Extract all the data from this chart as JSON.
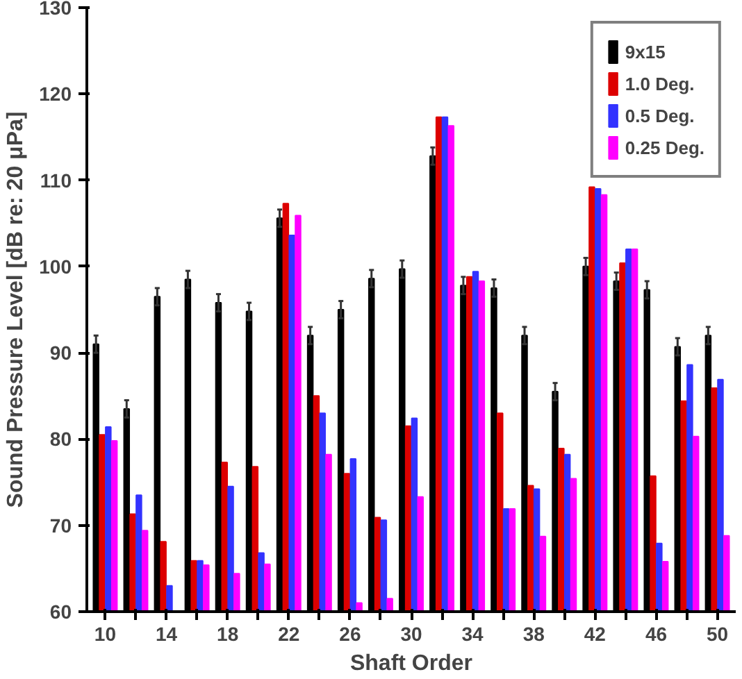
{
  "chart_data": {
    "type": "bar",
    "xlabel": "Shaft Order",
    "ylabel": "Sound Pressure Level [dB re: 20 μPa]",
    "categories": [
      "10",
      null,
      "14",
      null,
      "18",
      null,
      "22",
      null,
      "26",
      null,
      "30",
      null,
      "34",
      null,
      "38",
      null,
      "42",
      null,
      "46",
      null,
      "50"
    ],
    "series": [
      {
        "name": "9x15",
        "color": "#000000",
        "values": [
          91,
          83.5,
          96.5,
          98.5,
          95.8,
          94.8,
          105.6,
          92,
          95,
          98.6,
          99.7,
          112.8,
          97.8,
          97.5,
          92,
          85.5,
          100,
          98.3,
          97.3,
          90.7,
          92
        ],
        "errors": [
          1,
          1,
          1,
          1,
          1,
          1,
          1,
          1,
          1,
          1,
          1,
          1,
          1,
          1,
          1,
          1,
          1,
          1,
          1,
          1,
          1
        ]
      },
      {
        "name": "1.0 Deg.",
        "color": "#dd0000",
        "values": [
          80.5,
          71.3,
          68.1,
          65.9,
          77.3,
          76.8,
          107.3,
          85,
          76,
          70.9,
          81.5,
          117.3,
          98.8,
          83,
          74.6,
          78.9,
          109.2,
          100.4,
          75.7,
          84.4,
          85.9
        ]
      },
      {
        "name": "0.5 Deg.",
        "color": "#3333ff",
        "values": [
          81.4,
          73.5,
          63,
          65.9,
          74.5,
          66.8,
          103.6,
          83,
          77.7,
          70.6,
          82.4,
          117.3,
          99.4,
          71.9,
          74.2,
          78.2,
          109,
          102,
          67.9,
          88.6,
          86.9
        ]
      },
      {
        "name": "0.25 Deg.",
        "color": "#ff00ff",
        "values": [
          79.8,
          69.4,
          null,
          65.4,
          64.4,
          65.5,
          105.9,
          78.2,
          61,
          61.5,
          73.3,
          116.3,
          98.3,
          71.9,
          68.7,
          75.4,
          108.3,
          102,
          65.8,
          80.3,
          68.8
        ]
      }
    ],
    "ylim": [
      60,
      130
    ],
    "yticks": [
      60,
      70,
      80,
      90,
      100,
      110,
      120,
      130
    ],
    "grid": false,
    "legend": "top right"
  }
}
